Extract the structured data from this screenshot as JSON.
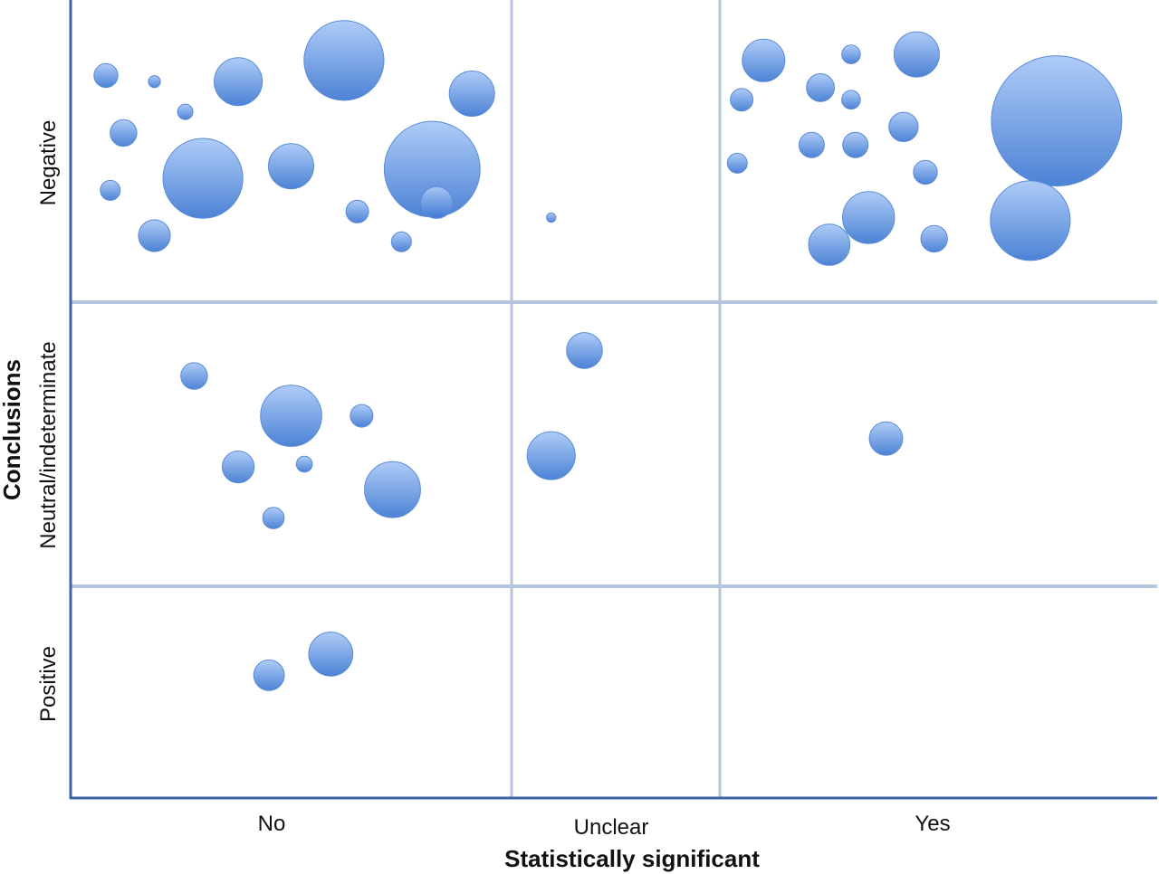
{
  "chart_data": {
    "type": "scatter",
    "xlabel": "Statistically significant",
    "ylabel": "Conclusions",
    "x_categories": [
      "No",
      "Unclear",
      "Yes"
    ],
    "y_categories": [
      "Positive",
      "Neutral/indeterminate",
      "Negative"
    ],
    "x_range": [
      0,
      3
    ],
    "y_range": [
      0,
      3
    ],
    "grid": true,
    "colors": {
      "bubble_light": "#a9c8f7",
      "bubble_dark": "#3f79d2",
      "grid": "#b4c4de",
      "axis": "#3d63a6"
    },
    "series": [
      {
        "points": [
          {
            "x": 0.08,
            "y": 2.75,
            "r": 0.09
          },
          {
            "x": 0.19,
            "y": 2.73,
            "r": 0.045
          },
          {
            "x": 0.38,
            "y": 2.73,
            "r": 0.18
          },
          {
            "x": 0.62,
            "y": 2.8,
            "r": 0.3
          },
          {
            "x": 0.91,
            "y": 2.69,
            "r": 0.17
          },
          {
            "x": 0.26,
            "y": 2.63,
            "r": 0.058
          },
          {
            "x": 0.12,
            "y": 2.56,
            "r": 0.1
          },
          {
            "x": 0.3,
            "y": 2.41,
            "r": 0.3
          },
          {
            "x": 0.5,
            "y": 2.45,
            "r": 0.17
          },
          {
            "x": 0.82,
            "y": 2.44,
            "r": 0.36
          },
          {
            "x": 0.09,
            "y": 2.37,
            "r": 0.075
          },
          {
            "x": 0.19,
            "y": 2.22,
            "r": 0.12
          },
          {
            "x": 0.65,
            "y": 2.3,
            "r": 0.085
          },
          {
            "x": 0.83,
            "y": 2.33,
            "r": 0.12
          },
          {
            "x": 0.75,
            "y": 2.2,
            "r": 0.075
          },
          {
            "x": 0.28,
            "y": 1.74,
            "r": 0.1
          },
          {
            "x": 0.5,
            "y": 1.6,
            "r": 0.23
          },
          {
            "x": 0.66,
            "y": 1.6,
            "r": 0.085
          },
          {
            "x": 0.38,
            "y": 1.42,
            "r": 0.12
          },
          {
            "x": 0.53,
            "y": 1.43,
            "r": 0.06
          },
          {
            "x": 0.73,
            "y": 1.34,
            "r": 0.21
          },
          {
            "x": 0.46,
            "y": 1.24,
            "r": 0.08
          },
          {
            "x": 0.59,
            "y": 0.68,
            "r": 0.165
          },
          {
            "x": 0.45,
            "y": 0.58,
            "r": 0.115
          }
        ]
      },
      {
        "points": [
          {
            "x": 1.19,
            "y": 2.28,
            "r": 0.035
          },
          {
            "x": 1.35,
            "y": 1.83,
            "r": 0.135
          },
          {
            "x": 1.19,
            "y": 1.46,
            "r": 0.18
          }
        ]
      },
      {
        "points": [
          {
            "x": 2.1,
            "y": 2.8,
            "r": 0.16
          },
          {
            "x": 2.3,
            "y": 2.82,
            "r": 0.07
          },
          {
            "x": 2.45,
            "y": 2.82,
            "r": 0.17
          },
          {
            "x": 2.23,
            "y": 2.71,
            "r": 0.105
          },
          {
            "x": 2.05,
            "y": 2.67,
            "r": 0.085
          },
          {
            "x": 2.3,
            "y": 2.67,
            "r": 0.07
          },
          {
            "x": 2.42,
            "y": 2.58,
            "r": 0.11
          },
          {
            "x": 2.77,
            "y": 2.6,
            "r": 0.49
          },
          {
            "x": 2.21,
            "y": 2.52,
            "r": 0.095
          },
          {
            "x": 2.31,
            "y": 2.52,
            "r": 0.095
          },
          {
            "x": 2.04,
            "y": 2.46,
            "r": 0.075
          },
          {
            "x": 2.47,
            "y": 2.43,
            "r": 0.09
          },
          {
            "x": 2.34,
            "y": 2.28,
            "r": 0.195
          },
          {
            "x": 2.71,
            "y": 2.27,
            "r": 0.3
          },
          {
            "x": 2.25,
            "y": 2.19,
            "r": 0.155
          },
          {
            "x": 2.49,
            "y": 2.21,
            "r": 0.1
          },
          {
            "x": 2.38,
            "y": 1.52,
            "r": 0.125
          }
        ]
      }
    ]
  }
}
